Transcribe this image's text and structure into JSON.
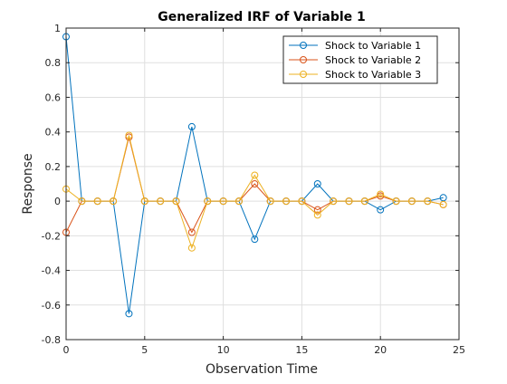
{
  "chart_data": {
    "type": "line",
    "title": "Generalized IRF of Variable 1",
    "xlabel": "Observation Time",
    "ylabel": "Response",
    "xlim": [
      0,
      25
    ],
    "ylim": [
      -0.8,
      1
    ],
    "xticks": [
      0,
      5,
      10,
      15,
      20,
      25
    ],
    "yticks": [
      -0.8,
      -0.6,
      -0.4,
      -0.2,
      0,
      0.2,
      0.4,
      0.6,
      0.8,
      1
    ],
    "ytick_labels": [
      "-0.8",
      "-0.6",
      "-0.4",
      "-0.2",
      "0",
      "0.2",
      "0.4",
      "0.6",
      "0.8",
      "1"
    ],
    "grid": true,
    "legend_position": "top-right",
    "marker": "circle",
    "x": [
      0,
      1,
      2,
      3,
      4,
      5,
      6,
      7,
      8,
      9,
      10,
      11,
      12,
      13,
      14,
      15,
      16,
      17,
      18,
      19,
      20,
      21,
      22,
      23,
      24
    ],
    "series": [
      {
        "name": "Shock to Variable 1",
        "color": "#0072bd",
        "values": [
          0.95,
          0,
          0,
          0,
          -0.65,
          0,
          0,
          0,
          0.43,
          0,
          0,
          0,
          -0.22,
          0,
          0,
          0,
          0.1,
          0,
          0,
          0,
          -0.05,
          0,
          0,
          0,
          0.02
        ]
      },
      {
        "name": "Shock to Variable 2",
        "color": "#d95319",
        "values": [
          -0.18,
          0,
          0,
          0,
          0.37,
          0,
          0,
          0,
          -0.18,
          0,
          0,
          0,
          0.1,
          0,
          0,
          0,
          -0.05,
          0,
          0,
          0,
          0.03,
          0,
          0,
          0,
          -0.02
        ]
      },
      {
        "name": "Shock to Variable 3",
        "color": "#edb120",
        "values": [
          0.07,
          0,
          0,
          0,
          0.38,
          0,
          0,
          0,
          -0.27,
          0,
          0,
          0,
          0.15,
          0,
          0,
          0,
          -0.08,
          0,
          0,
          0,
          0.04,
          0,
          0,
          0,
          -0.02
        ]
      }
    ]
  }
}
